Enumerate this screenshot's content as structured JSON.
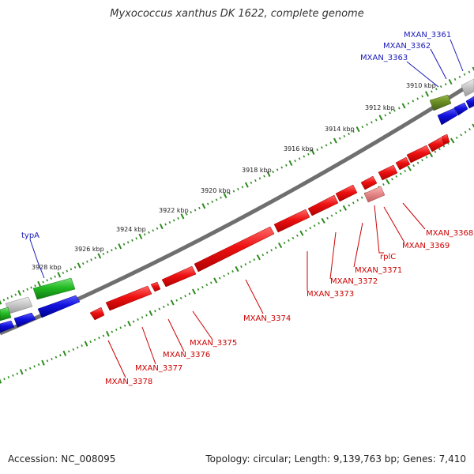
{
  "title": "Myxococcus xanthus DK 1622, complete genome",
  "footer": {
    "accession": "Accession: NC_008095",
    "summary": "Topology: circular; Length: 9,139,763 bp; Genes: 7,410"
  },
  "colors": {
    "backbone": "#7a7a7a",
    "ruler": "#2d8a1e",
    "red_gene": "#ee1111",
    "red_label": "#cc0000",
    "blue_gene": "#1010dd",
    "blue_label": "#1a1ab8",
    "green_gene": "#22bb22",
    "olive_gene": "#6b8e23",
    "gray_gene": "#c8c8c8",
    "pink_gene": "#e88a8a"
  },
  "ruler_labels": [
    "3910 kbp",
    "3912 kbp",
    "3914 kbp",
    "3916 kbp",
    "3918 kbp",
    "3920 kbp",
    "3922 kbp",
    "3924 kbp",
    "3926 kbp",
    "3928 kbp"
  ],
  "top_labels": [
    {
      "name": "MXAN_3361",
      "color": "blue"
    },
    {
      "name": "MXAN_3362",
      "color": "blue"
    },
    {
      "name": "MXAN_3363",
      "color": "blue"
    },
    {
      "name": "typA",
      "color": "blue"
    }
  ],
  "bottom_labels": [
    {
      "name": "MXAN_3368",
      "color": "red"
    },
    {
      "name": "MXAN_3369",
      "color": "red"
    },
    {
      "name": "rplC",
      "color": "red"
    },
    {
      "name": "MXAN_3371",
      "color": "red"
    },
    {
      "name": "MXAN_3372",
      "color": "red"
    },
    {
      "name": "MXAN_3373",
      "color": "red"
    },
    {
      "name": "MXAN_3374",
      "color": "red"
    },
    {
      "name": "MXAN_3375",
      "color": "red"
    },
    {
      "name": "MXAN_3376",
      "color": "red"
    },
    {
      "name": "MXAN_3377",
      "color": "red"
    },
    {
      "name": "MXAN_3378",
      "color": "red"
    }
  ]
}
